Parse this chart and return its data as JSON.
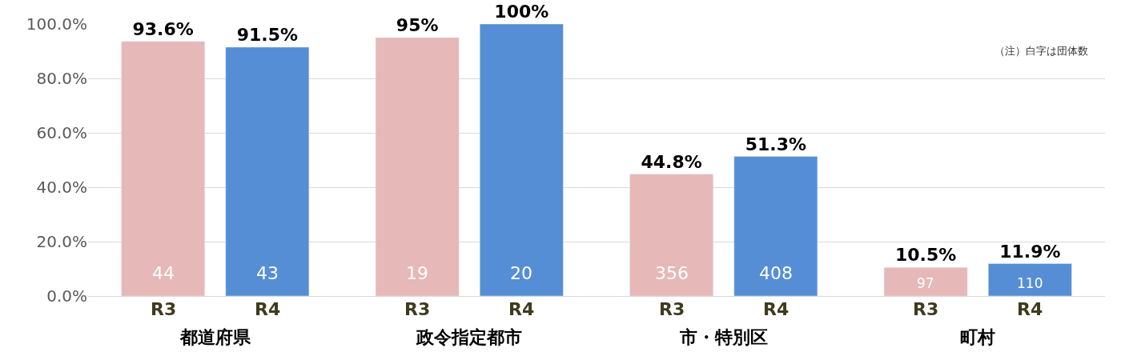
{
  "chart_data": {
    "type": "bar",
    "categories": [
      "都道府県",
      "政令指定都市",
      "市・特別区",
      "町村"
    ],
    "series": [
      {
        "name": "R3",
        "color": "#e6b8b7",
        "values": [
          93.6,
          95,
          44.8,
          10.5
        ],
        "value_labels": [
          "93.6%",
          "95%",
          "44.8%",
          "10.5%"
        ]
      },
      {
        "name": "R4",
        "color": "#558ed5",
        "values": [
          91.5,
          100,
          51.3,
          11.9
        ],
        "value_labels": [
          "91.5%",
          "100%",
          "51.3%",
          "11.9%"
        ]
      }
    ],
    "ylim": [
      0,
      100
    ],
    "yticks": [
      {
        "value": 0,
        "label": "0.0%"
      },
      {
        "value": 20,
        "label": "20.0%"
      },
      {
        "value": 40,
        "label": "40.0%"
      },
      {
        "value": 60,
        "label": "60.0%"
      },
      {
        "value": 80,
        "label": "80.0%"
      },
      {
        "value": 100,
        "label": "100.0%"
      }
    ],
    "grid": "y",
    "legend": false,
    "annotations": [
      "（注）白字は団体数",
      "44",
      "43",
      "19",
      "20",
      "356",
      "408",
      "97",
      "110"
    ]
  }
}
